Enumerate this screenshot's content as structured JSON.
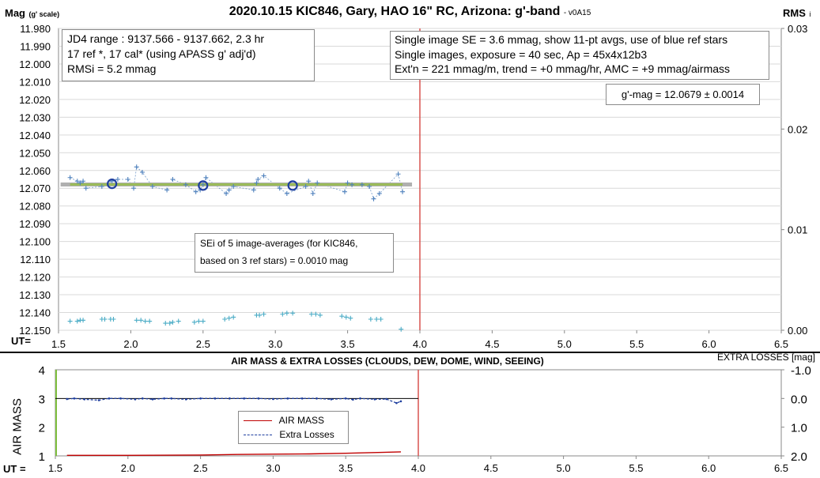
{
  "top_chart": {
    "title": "2020.10.15 KIC846, Gary, HAO 16\" RC, Arizona: g'-band",
    "version": "- v0A15",
    "ylabel_main": "Mag",
    "ylabel_sub": "(g' scale)",
    "y2label_main": "RMS",
    "y2label_sub": "i",
    "ut_label": "UT="
  },
  "info_left": {
    "line1": "JD4 range : 9137.566 - 9137.662,  2.3  hr",
    "line2": "17 ref *, 17 cal* (using APASS g' adj'd)",
    "line3": "RMSi = 5.2 mmag"
  },
  "info_right": {
    "line1": "Single image SE = 3.6 mmag, show  11-pt avgs, use of blue ref stars",
    "line2": "Single images, exposure = 40 sec, Ap = 45x4x12b3",
    "line3": "Ext'n = 221 mmag/m, trend =  +0 mmag/hr, AMC = +9 mmag/airmass"
  },
  "result_box": {
    "text": "g'-mag = 12.0679 ± 0.0014"
  },
  "sei_box": {
    "line1": "SEi of 5 image-averages (for KIC846,",
    "line2": "based on 3 ref stars) = 0.0010 mag"
  },
  "bottom_chart": {
    "title": "AIR MASS & EXTRA LOSSES (CLOUDS, DEW, DOME, WIND, SEEING)",
    "ylabel": "AIR MASS",
    "y2label": "EXTRA LOSSES [mag]",
    "ut_label": "UT ="
  },
  "legend": {
    "airmass": "AIR MASS",
    "losses": "Extra Losses"
  },
  "colors": {
    "data": "#4f81bd",
    "rms": "#4bacc6",
    "fit": "#9bbb59",
    "avg": "#1f3f9f",
    "end": "#d9534f",
    "airmass": "#c00000",
    "losses": "#1f3f9f",
    "start": "#7fbf3f"
  },
  "chart_data": [
    {
      "type": "scatter",
      "title": "2020.10.15 KIC846, Gary, HAO 16\" RC, Arizona: g'-band",
      "xlabel": "UT=",
      "ylabel": "Mag (g' scale)",
      "y2label": "RMS i",
      "xlim": [
        1.5,
        6.5
      ],
      "ylim": [
        12.15,
        11.98
      ],
      "y2lim": [
        0.0,
        0.03
      ],
      "x_ticks": [
        "1.5",
        "2.0",
        "2.5",
        "3.0",
        "3.5",
        "4.0",
        "4.5",
        "5.0",
        "5.5",
        "6.0",
        "6.5"
      ],
      "y_ticks": [
        "11.980",
        "11.990",
        "12.000",
        "12.010",
        "12.020",
        "12.030",
        "12.040",
        "12.050",
        "12.060",
        "12.070",
        "12.080",
        "12.090",
        "12.100",
        "12.110",
        "12.120",
        "12.130",
        "12.140",
        "12.150"
      ],
      "y2_ticks": [
        "0.03",
        "0.02",
        "0.01",
        "0.00"
      ],
      "series": [
        {
          "name": "single images",
          "x": [
            1.58,
            1.63,
            1.65,
            1.67,
            1.69,
            1.8,
            1.87,
            1.91,
            1.98,
            2.02,
            2.04,
            2.08,
            2.15,
            2.25,
            2.29,
            2.38,
            2.45,
            2.48,
            2.5,
            2.52,
            2.66,
            2.68,
            2.71,
            2.85,
            2.87,
            2.88,
            2.92,
            3.03,
            3.08,
            3.21,
            3.23,
            3.26,
            3.29,
            3.48,
            3.5,
            3.53,
            3.6,
            3.65,
            3.68,
            3.72,
            3.85,
            3.88
          ],
          "y": [
            12.064,
            12.066,
            12.067,
            12.066,
            12.07,
            12.069,
            12.066,
            12.065,
            12.065,
            12.07,
            12.058,
            12.061,
            12.069,
            12.071,
            12.065,
            12.068,
            12.072,
            12.071,
            12.068,
            12.064,
            12.073,
            12.071,
            12.069,
            12.071,
            12.067,
            12.065,
            12.063,
            12.07,
            12.073,
            12.069,
            12.066,
            12.073,
            12.067,
            12.072,
            12.067,
            12.068,
            12.068,
            12.069,
            12.076,
            12.073,
            12.062,
            12.072
          ]
        },
        {
          "name": "averages",
          "x": [
            1.87,
            2.5,
            3.12
          ],
          "y": [
            12.0675,
            12.0685,
            12.0685
          ]
        },
        {
          "name": "fit",
          "x": [
            1.58,
            3.88
          ],
          "y": [
            12.0679,
            12.0679
          ]
        },
        {
          "name": "RMS i",
          "x": [
            1.58,
            1.63,
            1.65,
            1.67,
            1.8,
            1.82,
            1.86,
            1.88,
            2.04,
            2.07,
            2.1,
            2.13,
            2.24,
            2.27,
            2.29,
            2.33,
            2.44,
            2.47,
            2.5,
            2.65,
            2.68,
            2.71,
            2.87,
            2.89,
            2.92,
            3.05,
            3.08,
            3.12,
            3.25,
            3.28,
            3.31,
            3.46,
            3.49,
            3.52,
            3.66,
            3.7,
            3.73,
            3.87
          ],
          "y": [
            0.0009,
            0.0009,
            0.001,
            0.001,
            0.0011,
            0.0011,
            0.0011,
            0.0011,
            0.001,
            0.001,
            0.0009,
            0.0009,
            0.0007,
            0.0007,
            0.0008,
            0.0009,
            0.0008,
            0.0009,
            0.0009,
            0.0011,
            0.0012,
            0.0013,
            0.0015,
            0.0015,
            0.0016,
            0.0016,
            0.0017,
            0.0017,
            0.0016,
            0.0016,
            0.0015,
            0.0014,
            0.0013,
            0.0012,
            0.0011,
            0.0011,
            0.0011,
            0.0001
          ]
        }
      ],
      "vline_x": 4.0
    },
    {
      "type": "line",
      "title": "AIR MASS & EXTRA LOSSES (CLOUDS, DEW, DOME, WIND, SEEING)",
      "xlabel": "UT =",
      "ylabel": "AIR MASS",
      "y2label": "EXTRA LOSSES [mag]",
      "xlim": [
        1.5,
        6.5
      ],
      "ylim": [
        1,
        4
      ],
      "y2lim": [
        -1.0,
        2.0
      ],
      "x_ticks": [
        "1.5",
        "2.0",
        "2.5",
        "3.0",
        "3.5",
        "4.0",
        "4.5",
        "5.0",
        "5.5",
        "6.0",
        "6.5"
      ],
      "y_ticks": [
        "1",
        "2",
        "3",
        "4"
      ],
      "y2_ticks": [
        "-1.0",
        "0.0",
        "1.0",
        "2.0"
      ],
      "series": [
        {
          "name": "AIR MASS",
          "x": [
            1.58,
            2.0,
            2.5,
            2.75,
            3.0,
            3.25,
            3.5,
            3.75,
            3.88
          ],
          "y": [
            1.02,
            1.02,
            1.03,
            1.05,
            1.06,
            1.07,
            1.09,
            1.12,
            1.14
          ]
        },
        {
          "name": "Extra Losses",
          "x": [
            1.58,
            1.63,
            1.7,
            1.8,
            1.87,
            1.95,
            2.05,
            2.1,
            2.17,
            2.25,
            2.3,
            2.4,
            2.5,
            2.6,
            2.7,
            2.8,
            2.9,
            3.0,
            3.1,
            3.2,
            3.3,
            3.4,
            3.5,
            3.55,
            3.6,
            3.7,
            3.78,
            3.85,
            3.88
          ],
          "y": [
            0.02,
            0.0,
            0.03,
            0.06,
            0.0,
            0.0,
            0.03,
            0.0,
            0.03,
            0.0,
            0.0,
            0.03,
            0.0,
            0.0,
            0.0,
            0.0,
            0.0,
            0.02,
            0.0,
            0.0,
            0.0,
            0.03,
            0.0,
            0.04,
            0.0,
            0.03,
            0.02,
            0.16,
            0.1
          ]
        }
      ],
      "vline_x": 4.0
    }
  ]
}
